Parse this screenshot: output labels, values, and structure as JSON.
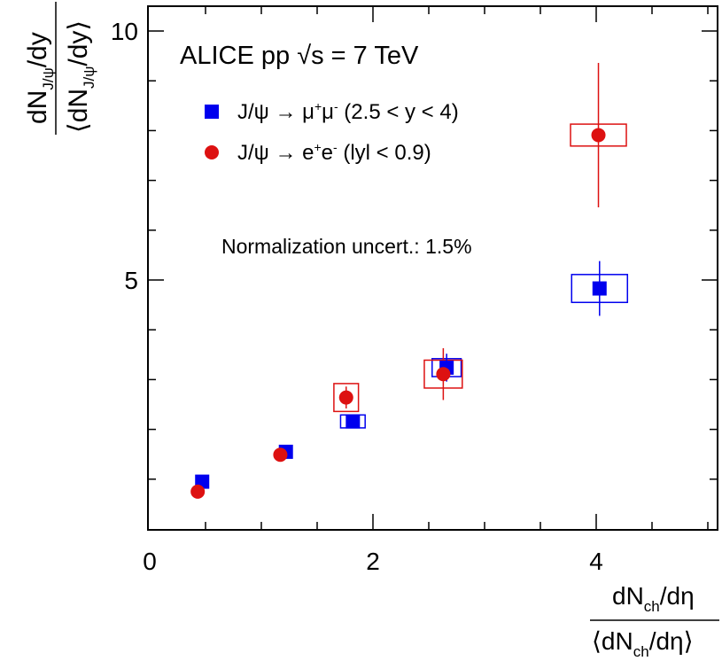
{
  "chart_data": {
    "type": "scatter",
    "title": "ALICE pp √s = 7 TeV",
    "title_parts": {
      "prefix": "ALICE pp ",
      "sqrt": "√",
      "var": "s",
      "suffix": " = 7 TeV"
    },
    "annotation": "Normalization uncert.: 1.5%",
    "xlabel": {
      "num_main": "dN",
      "num_sub": "ch",
      "num_tail": "/dη",
      "den_open": "⟨dN",
      "den_sub": "ch",
      "den_tail": "/dη⟩"
    },
    "ylabel": {
      "num_main": "dN",
      "num_sub": "J/ψ",
      "num_tail": "/dy",
      "den_open": "⟨dN",
      "den_sub": "J/ψ",
      "den_tail": "/dy⟩"
    },
    "xlim": [
      0,
      5.05
    ],
    "ylim": [
      0.5,
      10.5
    ],
    "x_major_ticks": [
      0,
      2,
      4
    ],
    "x_tick_labels": [
      "0",
      "2",
      "4"
    ],
    "y_major_ticks": [
      5,
      10
    ],
    "y_tick_labels": [
      "5",
      "10"
    ],
    "grid": false,
    "legend_position": "top-left",
    "series": [
      {
        "name": "J/ψ → μ⁺μ⁻ (2.5 < y < 4)",
        "legend_text": {
          "main": "J/ψ → μ",
          "sup1": "+",
          "mid": "μ",
          "sup2": "-",
          "tail": " (2.5 < y < 4)"
        },
        "marker": "square",
        "color": "#0000ee",
        "points": [
          {
            "x": 0.47,
            "y": 0.95,
            "stat": 0.06,
            "sys_x": 0.04,
            "sys_y": 0.06
          },
          {
            "x": 1.22,
            "y": 1.55,
            "stat": 0.06,
            "sys_x": 0.05,
            "sys_y": 0.08
          },
          {
            "x": 1.82,
            "y": 2.16,
            "stat": 0.08,
            "sys_x": 0.11,
            "sys_y": 0.13
          },
          {
            "x": 2.66,
            "y": 3.24,
            "stat": 0.28,
            "sys_x": 0.13,
            "sys_y": 0.18
          },
          {
            "x": 4.03,
            "y": 4.83,
            "stat": 0.55,
            "sys_x": 0.25,
            "sys_y": 0.28
          }
        ]
      },
      {
        "name": "J/ψ → e⁺e⁻ (|y| < 0.9)",
        "legend_text": {
          "main": "J/ψ → e",
          "sup1": "+",
          "mid": "e",
          "sup2": "-",
          "tail": " (lyl < 0.9)"
        },
        "marker": "circle",
        "color": "#dd1111",
        "points": [
          {
            "x": 0.43,
            "y": 0.75,
            "stat": 0.04,
            "sys_x": 0.04,
            "sys_y": 0.06
          },
          {
            "x": 1.17,
            "y": 1.49,
            "stat": 0.06,
            "sys_x": 0.04,
            "sys_y": 0.06
          },
          {
            "x": 1.76,
            "y": 2.64,
            "stat": 0.22,
            "sys_x": 0.11,
            "sys_y": 0.28
          },
          {
            "x": 2.63,
            "y": 3.11,
            "stat": 0.52,
            "sys_x": 0.17,
            "sys_y": 0.28
          },
          {
            "x": 4.02,
            "y": 7.91,
            "stat": 1.45,
            "sys_x": 0.25,
            "sys_y": 0.22
          }
        ]
      }
    ]
  }
}
